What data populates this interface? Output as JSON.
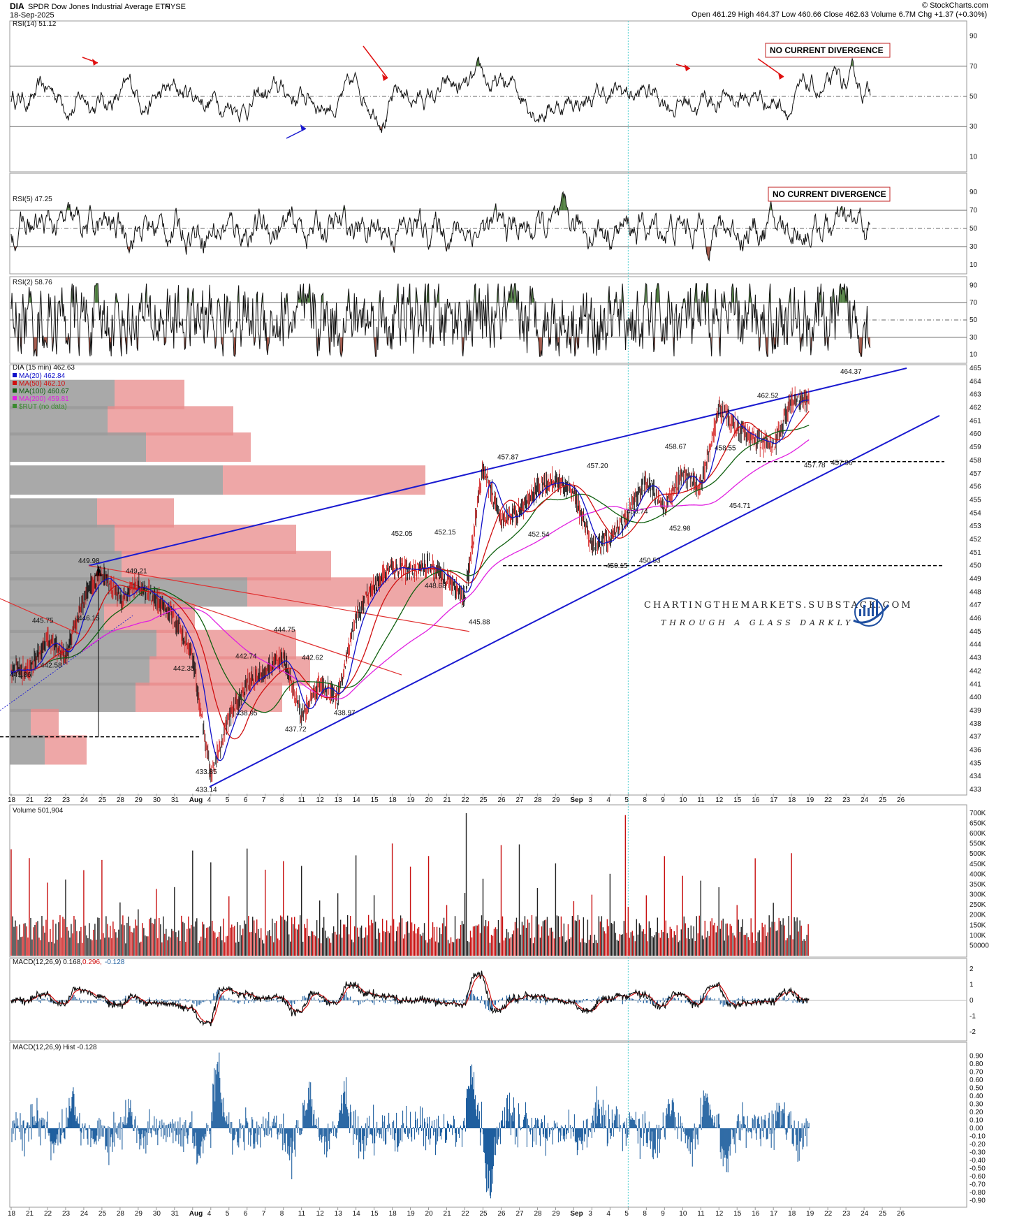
{
  "header": {
    "symbol": "DIA",
    "name": "SPDR Dow Jones Industrial Average ETF",
    "exchange": "NYSE",
    "date": "18-Sep-2025",
    "stats": "Open 461.29  High 464.37  Low 460.66  Close 462.63  Volume 6.7M  Chg +1.37 (+0.30%)",
    "credit": "© StockCharts.com"
  },
  "colors": {
    "up_candle": "#000000",
    "down_candle": "#d01010",
    "ma20": "#1010c8",
    "ma50": "#d01010",
    "ma100": "#106010",
    "ma200": "#e020e0",
    "trendline": "#1a1ad0",
    "overbought": "#3a7a30",
    "oversold": "#a04030",
    "volume_up": "#222222",
    "volume_down": "#c81010",
    "macd_hist": "#1f5f9f"
  },
  "date_axis": [
    "18",
    "21",
    "22",
    "23",
    "24",
    "25",
    "28",
    "29",
    "30",
    "31",
    "Aug",
    "4",
    "5",
    "6",
    "7",
    "8",
    "11",
    "12",
    "13",
    "14",
    "15",
    "18",
    "19",
    "20",
    "21",
    "22",
    "25",
    "26",
    "27",
    "28",
    "29",
    "Sep",
    "3",
    "4",
    "5",
    "8",
    "9",
    "10",
    "11",
    "12",
    "15",
    "16",
    "17",
    "18",
    "19",
    "22",
    "23",
    "24",
    "25",
    "26"
  ],
  "rsi14": {
    "title": "RSI(14) 51.12",
    "ticks": [
      "90",
      "70",
      "50",
      "30",
      "10"
    ],
    "annotation": "NO CURRENT DIVERGENCE"
  },
  "rsi5": {
    "title": "RSI(5) 47.25",
    "ticks": [
      "90",
      "70",
      "50",
      "30",
      "10"
    ],
    "annotation": "NO CURRENT DIVERGENCE"
  },
  "rsi2": {
    "title": "RSI(2) 58.76",
    "ticks": [
      "90",
      "70",
      "50",
      "30",
      "10"
    ]
  },
  "price": {
    "title": "DIA (15 min) 462.63",
    "legend": [
      {
        "label": "MA(20) 462.84",
        "color": "#1010c8"
      },
      {
        "label": "MA(50) 462.10",
        "color": "#d01010"
      },
      {
        "label": "MA(100) 460.67",
        "color": "#106010"
      },
      {
        "label": "MA(200) 459.81",
        "color": "#e020e0"
      },
      {
        "label": "$RUT (no data)",
        "color": "#3a8a30"
      }
    ],
    "ticks": [
      "465",
      "464",
      "463",
      "462",
      "461",
      "460",
      "459",
      "458",
      "457",
      "456",
      "455",
      "454",
      "453",
      "452",
      "451",
      "450",
      "449",
      "448",
      "447",
      "446",
      "445",
      "444",
      "443",
      "442",
      "441",
      "440",
      "439",
      "438",
      "437",
      "436",
      "435",
      "434",
      "433"
    ],
    "annotations": [
      "441.86",
      "445.75",
      "442.58",
      "446.15",
      "449.98",
      "449.21",
      "442.35",
      "433.14",
      "433.85",
      "438.95",
      "442.74",
      "444.75",
      "437.72",
      "442.62",
      "438.97",
      "452.05",
      "452.15",
      "448.63",
      "445.88",
      "457.87",
      "452.54",
      "457.20",
      "453.74",
      "450.15",
      "450.53",
      "452.98",
      "458.67",
      "458.55",
      "454.71",
      "462.52",
      "457.78",
      "457.96",
      "464.37"
    ],
    "watermark_line1": "CHARTINGTHEMARKETS.SUBSTACK.COM",
    "watermark_line2": "THROUGH A GLASS DARKLY"
  },
  "volume": {
    "title": "Volume 501,904",
    "ticks": [
      "700K",
      "650K",
      "600K",
      "550K",
      "500K",
      "450K",
      "400K",
      "350K",
      "300K",
      "250K",
      "200K",
      "150K",
      "100K",
      "50000"
    ]
  },
  "macd": {
    "title": "MACD(12,26,9) 0.168,",
    "signal_text": "0.296,",
    "hist_text": "-0.128",
    "ticks": [
      "2",
      "1",
      "0",
      "-1",
      "-2"
    ]
  },
  "macd_hist": {
    "title": "MACD(12,26,9) Hist -0.128",
    "ticks": [
      "0.90",
      "0.80",
      "0.70",
      "0.60",
      "0.50",
      "0.40",
      "0.30",
      "0.20",
      "0.10",
      "0.00",
      "-0.10",
      "-0.20",
      "-0.30",
      "-0.40",
      "-0.50",
      "-0.60",
      "-0.70",
      "-0.80",
      "-0.90"
    ]
  },
  "chart_data": {
    "type": "line",
    "title": "DIA SPDR Dow Jones Industrial Average ETF (15 min)",
    "xlabel": "",
    "ylabel": "",
    "ylim": [
      433,
      465
    ],
    "x": [
      "Jul 18",
      "Jul 21",
      "Jul 22",
      "Jul 23",
      "Jul 24",
      "Jul 25",
      "Jul 28",
      "Jul 29",
      "Jul 30",
      "Jul 31",
      "Aug 1",
      "Aug 4",
      "Aug 5",
      "Aug 6",
      "Aug 7",
      "Aug 8",
      "Aug 11",
      "Aug 12",
      "Aug 13",
      "Aug 14",
      "Aug 15",
      "Aug 18",
      "Aug 19",
      "Aug 20",
      "Aug 21",
      "Aug 22",
      "Aug 25",
      "Aug 26",
      "Aug 27",
      "Aug 28",
      "Aug 29",
      "Sep 2",
      "Sep 3",
      "Sep 4",
      "Sep 5",
      "Sep 8",
      "Sep 9",
      "Sep 10",
      "Sep 11",
      "Sep 12",
      "Sep 15",
      "Sep 16",
      "Sep 17",
      "Sep 18"
    ],
    "series": [
      {
        "values": [
          442.0,
          444.5,
          443.0,
          447.5,
          449.5,
          447.5,
          448.5,
          447.5,
          446.0,
          443.0,
          434.0,
          438.5,
          441.0,
          442.0,
          443.0,
          438.5,
          441.0,
          440.0,
          446.0,
          448.5,
          450.0,
          449.5,
          450.0,
          449.0,
          447.5,
          457.5,
          453.5,
          454.0,
          456.0,
          456.5,
          455.5,
          451.5,
          452.0,
          454.0,
          456.5,
          454.5,
          457.0,
          456.0,
          462.0,
          460.5,
          459.5,
          459.0,
          462.5,
          462.6
        ]
      }
    ],
    "price_levels": [
      {
        "name": "",
        "value": 450
      },
      {
        "name": "",
        "value": 457.9
      },
      {
        "name": "",
        "value": 437
      }
    ]
  }
}
